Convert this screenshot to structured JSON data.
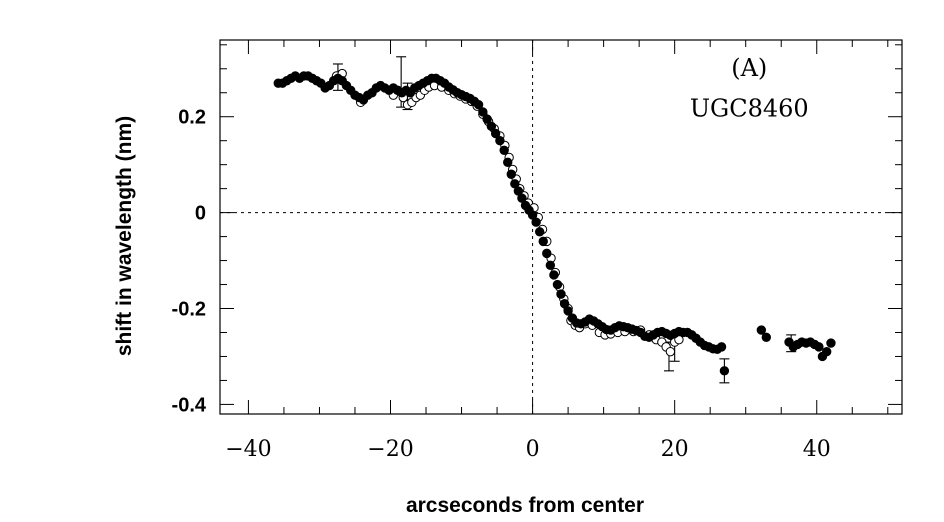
{
  "chart_data": {
    "type": "scatter",
    "xlabel": "arcseconds from center",
    "ylabel": "shift in wavelength (nm)",
    "xlim": [
      -44,
      52
    ],
    "ylim": [
      -0.42,
      0.36
    ],
    "x_ticks": [
      -40,
      -20,
      0,
      20,
      40
    ],
    "x_tick_labels": [
      "−40",
      "−20",
      "0",
      "20",
      "40"
    ],
    "y_ticks": [
      0.2,
      0,
      -0.2,
      -0.4
    ],
    "y_tick_labels": [
      "0.2",
      "0",
      "-0.2",
      "-0.4"
    ],
    "annotations": [
      {
        "text": "(A)",
        "x": 30.5,
        "y": 0.285
      },
      {
        "text": "UGC8460",
        "x": 30.5,
        "y": 0.2
      }
    ],
    "reference_lines": {
      "horizontal": 0,
      "vertical": 0,
      "style": "dotted"
    },
    "series": [
      {
        "marker": "filled-circle",
        "points": [
          [
            -35.8,
            0.27
          ],
          [
            -35.2,
            0.27
          ],
          [
            -34.6,
            0.275
          ],
          [
            -34.0,
            0.28
          ],
          [
            -33.4,
            0.285
          ],
          [
            -32.8,
            0.28
          ],
          [
            -32.2,
            0.285
          ],
          [
            -31.6,
            0.285
          ],
          [
            -31.0,
            0.28
          ],
          [
            -30.4,
            0.275
          ],
          [
            -29.8,
            0.27
          ],
          [
            -29.2,
            0.26
          ],
          [
            -28.6,
            0.265
          ],
          [
            -28.0,
            0.275
          ],
          [
            -27.4,
            0.28
          ],
          [
            -26.8,
            0.275
          ],
          [
            -26.2,
            0.265
          ],
          [
            -25.6,
            0.255
          ],
          [
            -25.0,
            0.245
          ],
          [
            -24.4,
            0.24
          ],
          [
            -23.8,
            0.235
          ],
          [
            -23.2,
            0.245
          ],
          [
            -22.6,
            0.25
          ],
          [
            -22.0,
            0.26
          ],
          [
            -21.4,
            0.265
          ],
          [
            -20.8,
            0.26
          ],
          [
            -20.2,
            0.255
          ],
          [
            -19.6,
            0.26
          ],
          [
            -19.0,
            0.255
          ],
          [
            -18.4,
            0.25
          ],
          [
            -17.8,
            0.255
          ],
          [
            -17.2,
            0.25
          ],
          [
            -16.6,
            0.26
          ],
          [
            -16.0,
            0.265
          ],
          [
            -15.4,
            0.27
          ],
          [
            -14.8,
            0.275
          ],
          [
            -14.2,
            0.28
          ],
          [
            -13.6,
            0.28
          ],
          [
            -13.0,
            0.275
          ],
          [
            -12.4,
            0.27
          ],
          [
            -11.8,
            0.262
          ],
          [
            -11.2,
            0.256
          ],
          [
            -10.6,
            0.25
          ],
          [
            -10.0,
            0.246
          ],
          [
            -9.4,
            0.242
          ],
          [
            -8.8,
            0.238
          ],
          [
            -8.2,
            0.232
          ],
          [
            -7.6,
            0.225
          ],
          [
            -7.0,
            0.21
          ],
          [
            -6.4,
            0.195
          ],
          [
            -5.8,
            0.18
          ],
          [
            -5.2,
            0.165
          ],
          [
            -4.6,
            0.15
          ],
          [
            -4.0,
            0.13
          ],
          [
            -3.5,
            0.105
          ],
          [
            -3.0,
            0.08
          ],
          [
            -2.5,
            0.06
          ],
          [
            -2.0,
            0.045
          ],
          [
            -1.5,
            0.03
          ],
          [
            -1.0,
            0.015
          ],
          [
            -0.5,
            0.005
          ],
          [
            0.0,
            -0.005
          ],
          [
            0.5,
            -0.02
          ],
          [
            1.0,
            -0.04
          ],
          [
            1.5,
            -0.06
          ],
          [
            2.0,
            -0.085
          ],
          [
            2.5,
            -0.11
          ],
          [
            3.0,
            -0.13
          ],
          [
            3.5,
            -0.15
          ],
          [
            4.0,
            -0.17
          ],
          [
            4.5,
            -0.19
          ],
          [
            5.0,
            -0.205
          ],
          [
            5.6,
            -0.22
          ],
          [
            6.2,
            -0.23
          ],
          [
            6.8,
            -0.232
          ],
          [
            7.4,
            -0.228
          ],
          [
            8.0,
            -0.222
          ],
          [
            8.6,
            -0.226
          ],
          [
            9.2,
            -0.232
          ],
          [
            9.8,
            -0.238
          ],
          [
            10.4,
            -0.244
          ],
          [
            11.0,
            -0.245
          ],
          [
            11.6,
            -0.24
          ],
          [
            12.2,
            -0.236
          ],
          [
            12.8,
            -0.238
          ],
          [
            13.4,
            -0.24
          ],
          [
            14.0,
            -0.243
          ],
          [
            14.6,
            -0.246
          ],
          [
            15.2,
            -0.25
          ],
          [
            15.8,
            -0.258
          ],
          [
            16.4,
            -0.26
          ],
          [
            17.0,
            -0.255
          ],
          [
            17.6,
            -0.25
          ],
          [
            18.2,
            -0.248
          ],
          [
            18.8,
            -0.252
          ],
          [
            19.4,
            -0.256
          ],
          [
            20.0,
            -0.252
          ],
          [
            20.6,
            -0.248
          ],
          [
            21.2,
            -0.25
          ],
          [
            21.8,
            -0.25
          ],
          [
            22.4,
            -0.255
          ],
          [
            23.0,
            -0.262
          ],
          [
            23.6,
            -0.27
          ],
          [
            24.2,
            -0.277
          ],
          [
            24.8,
            -0.28
          ],
          [
            25.4,
            -0.284
          ],
          [
            26.0,
            -0.285
          ],
          [
            26.6,
            -0.28
          ],
          [
            27.0,
            -0.33
          ],
          [
            32.2,
            -0.245
          ],
          [
            32.9,
            -0.26
          ],
          [
            36.1,
            -0.27
          ],
          [
            36.7,
            -0.28
          ],
          [
            37.3,
            -0.275
          ],
          [
            37.9,
            -0.27
          ],
          [
            38.5,
            -0.272
          ],
          [
            39.1,
            -0.27
          ],
          [
            39.7,
            -0.275
          ],
          [
            40.3,
            -0.28
          ],
          [
            40.8,
            -0.3
          ],
          [
            41.4,
            -0.29
          ],
          [
            42.0,
            -0.272
          ]
        ]
      },
      {
        "marker": "open-circle",
        "points": [
          [
            -27.6,
            0.285
          ],
          [
            -26.8,
            0.29
          ],
          [
            -24.2,
            0.23
          ],
          [
            -19.6,
            0.245
          ],
          [
            -19.0,
            0.255
          ],
          [
            -18.2,
            0.24
          ],
          [
            -17.6,
            0.225
          ],
          [
            -17.0,
            0.23
          ],
          [
            -16.4,
            0.24
          ],
          [
            -15.8,
            0.245
          ],
          [
            -15.2,
            0.255
          ],
          [
            -14.6,
            0.262
          ],
          [
            -13.8,
            0.265
          ],
          [
            -12.8,
            0.262
          ],
          [
            -11.8,
            0.255
          ],
          [
            -11.0,
            0.248
          ],
          [
            -10.2,
            0.243
          ],
          [
            -9.4,
            0.237
          ],
          [
            -8.6,
            0.232
          ],
          [
            -7.8,
            0.222
          ],
          [
            -7.0,
            0.205
          ],
          [
            -6.2,
            0.19
          ],
          [
            -5.4,
            0.175
          ],
          [
            -4.6,
            0.16
          ],
          [
            -3.9,
            0.14
          ],
          [
            -3.3,
            0.115
          ],
          [
            -2.8,
            0.09
          ],
          [
            -2.3,
            0.07
          ],
          [
            -1.8,
            0.05
          ],
          [
            -1.2,
            0.035
          ],
          [
            -0.6,
            0.02
          ],
          [
            0.2,
            0.01
          ],
          [
            0.8,
            -0.01
          ],
          [
            1.4,
            -0.035
          ],
          [
            2.0,
            -0.06
          ],
          [
            2.6,
            -0.095
          ],
          [
            3.2,
            -0.125
          ],
          [
            3.8,
            -0.155
          ],
          [
            4.4,
            -0.18
          ],
          [
            5.0,
            -0.2
          ],
          [
            5.4,
            -0.225
          ],
          [
            6.0,
            -0.235
          ],
          [
            6.6,
            -0.24
          ],
          [
            7.4,
            -0.232
          ],
          [
            8.4,
            -0.235
          ],
          [
            9.4,
            -0.25
          ],
          [
            10.2,
            -0.255
          ],
          [
            11.0,
            -0.253
          ],
          [
            12.0,
            -0.25
          ],
          [
            13.0,
            -0.248
          ],
          [
            14.2,
            -0.248
          ],
          [
            15.2,
            -0.245
          ],
          [
            16.4,
            -0.255
          ],
          [
            17.4,
            -0.265
          ],
          [
            18.2,
            -0.27
          ],
          [
            18.8,
            -0.28
          ],
          [
            19.4,
            -0.29
          ],
          [
            20.0,
            -0.27
          ],
          [
            20.6,
            -0.265
          ]
        ]
      }
    ],
    "error_bars": [
      {
        "x": -27.4,
        "low": 0.255,
        "high": 0.31
      },
      {
        "x": -18.5,
        "low": 0.22,
        "high": 0.325
      },
      {
        "x": -17.6,
        "low": 0.215,
        "high": 0.27
      },
      {
        "x": 19.2,
        "low": -0.33,
        "high": -0.27
      },
      {
        "x": 20.0,
        "low": -0.31,
        "high": -0.26
      },
      {
        "x": 27.0,
        "low": -0.355,
        "high": -0.305
      },
      {
        "x": 36.4,
        "low": -0.29,
        "high": -0.255
      }
    ]
  }
}
